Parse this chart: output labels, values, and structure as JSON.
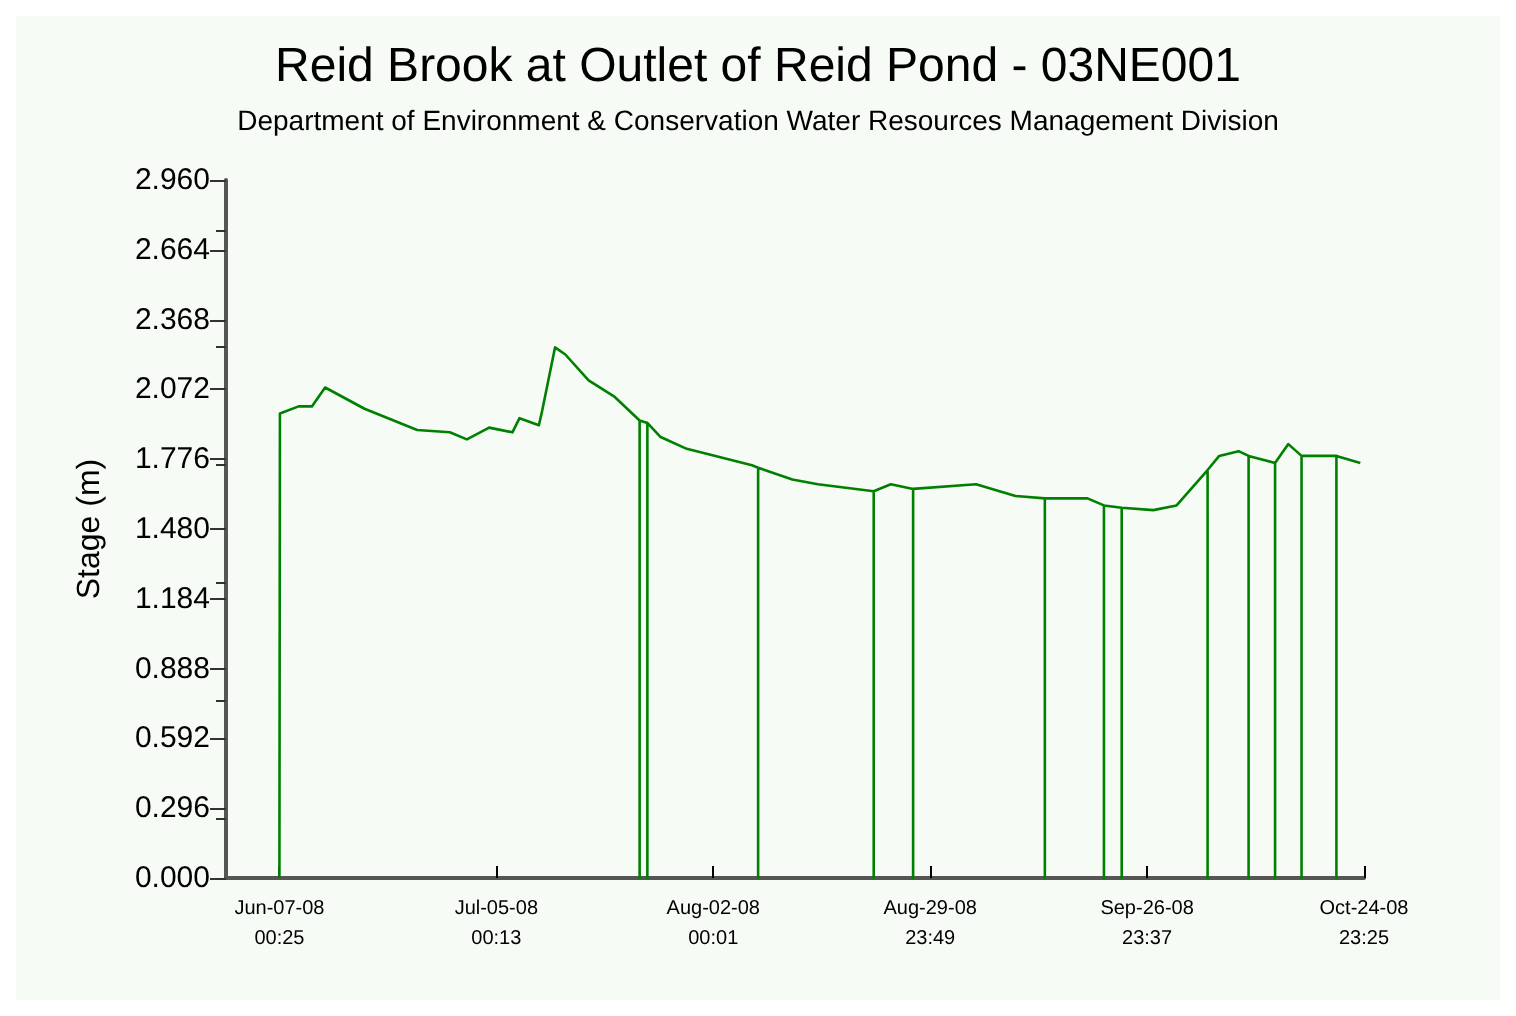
{
  "chart_data": {
    "type": "line",
    "title": "Reid Brook at Outlet of Reid Pond - 03NE001",
    "subtitle": "Department of Environment & Conservation Water Resources Management Division",
    "ylabel": "Stage (m)",
    "x": [
      "2008-06-07T00:25",
      "2008-06-07T02:00",
      "2008-06-09T12:00",
      "2008-06-11T05:00",
      "2008-06-12T22:00",
      "2008-06-18T00:00",
      "2008-06-24T19:00",
      "2008-06-29T00:00",
      "2008-07-01T05:00",
      "2008-07-04T02:00",
      "2008-07-07T02:00",
      "2008-07-08T00:00",
      "2008-07-10T12:00",
      "2008-07-10T22:00",
      "2008-07-12T14:00",
      "2008-07-13T22:00",
      "2008-07-16T22:00",
      "2008-07-20T07:00",
      "2008-07-23T12:00",
      "2008-07-23T12:00",
      "2008-07-23T12:00",
      "2008-07-24T12:00",
      "2008-07-24T12:00",
      "2008-07-24T12:00",
      "2008-07-26T05:00",
      "2008-07-29T14:00",
      "2008-08-07T00:00",
      "2008-08-07T19:00",
      "2008-08-07T19:00",
      "2008-08-07T19:00",
      "2008-08-12T05:00",
      "2008-08-15T12:00",
      "2008-08-22T17:00",
      "2008-08-22T17:00",
      "2008-08-22T17:00",
      "2008-08-24T22:00",
      "2008-08-27T19:00",
      "2008-08-27T19:00",
      "2008-08-27T19:00",
      "2008-09-04T22:00",
      "2008-09-10T00:00",
      "2008-09-13T19:00",
      "2008-09-13T19:00",
      "2008-09-13T19:00",
      "2008-09-19T07:00",
      "2008-09-21T10:00",
      "2008-09-21T10:00",
      "2008-09-21T10:00",
      "2008-09-23T17:00",
      "2008-09-23T17:00",
      "2008-09-23T17:00",
      "2008-09-27T19:00",
      "2008-09-30T19:00",
      "2008-10-04T19:00",
      "2008-10-04T19:00",
      "2008-10-04T19:00",
      "2008-10-06T07:00",
      "2008-10-08T19:00",
      "2008-10-10T02:00",
      "2008-10-10T02:00",
      "2008-10-10T02:00",
      "2008-10-13T12:00",
      "2008-10-13T12:00",
      "2008-10-13T12:00",
      "2008-10-15T05:00",
      "2008-10-16T22:00",
      "2008-10-16T22:00",
      "2008-10-16T22:00",
      "2008-10-21T10:00",
      "2008-10-21T10:00",
      "2008-10-21T10:00",
      "2008-10-24T12:00"
    ],
    "series": [
      {
        "color": "#008000",
        "values": [
          0,
          1.97,
          2.0,
          2.0,
          2.08,
          1.99,
          1.9,
          1.89,
          1.86,
          1.91,
          1.89,
          1.95,
          1.92,
          1.98,
          2.25,
          2.22,
          2.11,
          2.04,
          1.94,
          0,
          1.94,
          1.93,
          0,
          1.93,
          1.87,
          1.82,
          1.75,
          1.74,
          0,
          1.74,
          1.69,
          1.67,
          1.64,
          0,
          1.64,
          1.67,
          1.65,
          0,
          1.65,
          1.67,
          1.62,
          1.61,
          0,
          1.61,
          1.61,
          1.58,
          0,
          1.58,
          1.57,
          0,
          1.57,
          1.56,
          1.58,
          1.73,
          0,
          1.73,
          1.79,
          1.81,
          1.79,
          0,
          1.79,
          1.76,
          0,
          1.76,
          1.84,
          1.79,
          0,
          1.79,
          1.79,
          0,
          1.79,
          1.76
        ]
      }
    ],
    "xlim": [
      "2008-05-31T03:00",
      "2008-10-24T23:25"
    ],
    "xticks": [
      {
        "value": "2008-06-07T00:25",
        "label": "Jun-07-08\n00:25"
      },
      {
        "value": "2008-07-05T00:13",
        "label": "Jul-05-08\n00:13"
      },
      {
        "value": "2008-08-02T00:01",
        "label": "Aug-02-08\n00:01"
      },
      {
        "value": "2008-08-29T23:49",
        "label": "Aug-29-08\n23:49"
      },
      {
        "value": "2008-09-26T23:37",
        "label": "Sep-26-08\n23:37"
      },
      {
        "value": "2008-10-24T23:25",
        "label": "Oct-24-08\n23:25"
      }
    ],
    "ylim": [
      0,
      2.96
    ],
    "yticks": [
      {
        "value": 0,
        "label": "0.000"
      },
      {
        "value": 0.296,
        "label": "0.296"
      },
      {
        "value": 0.592,
        "label": "0.592"
      },
      {
        "value": 0.888,
        "label": "0.888"
      },
      {
        "value": 1.184,
        "label": "1.184"
      },
      {
        "value": 1.48,
        "label": "1.480"
      },
      {
        "value": 1.776,
        "label": "1.776"
      },
      {
        "value": 2.072,
        "label": "2.072"
      },
      {
        "value": 2.368,
        "label": "2.368"
      },
      {
        "value": 2.664,
        "label": "2.664"
      },
      {
        "value": 2.96,
        "label": "2.960"
      }
    ],
    "grid": false,
    "marker": "none",
    "line_style": "solid"
  }
}
